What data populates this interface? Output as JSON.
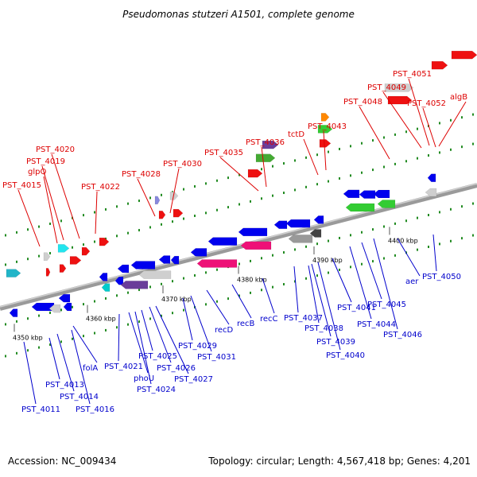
{
  "title": "Pseudomonas stutzeri A1501, complete genome",
  "footer": {
    "accession": "Accession: NC_009434",
    "summary": "Topology: circular; Length: 4,567,418 bp; Genes: 4,201"
  },
  "colors": {
    "forward_label": "#dd0000",
    "reverse_label": "#0000cc",
    "backbone": "#909090",
    "tick": "#228b22"
  },
  "ticks": [
    "4350 kbp",
    "4360 kbp",
    "4370 kbp",
    "4380 kbp",
    "4390 kbp",
    "4400 kbp"
  ],
  "forward_labels": [
    "PST_4015",
    "glpQ",
    "PST_4019",
    "PST_4020",
    "PST_4022",
    "PST_4028",
    "PST_4030",
    "PST_4035",
    "PST_4036",
    "tctD",
    "PST_4043",
    "PST_4048",
    "PST_4049",
    "PST_4051",
    "PST_4052",
    "algB"
  ],
  "reverse_labels": [
    "PST_4011",
    "PST_4013",
    "PST_4014",
    "PST_4016",
    "folA",
    "PST_4021",
    "phoU",
    "PST_4024",
    "PST_4025",
    "PST_4026",
    "PST_4027",
    "PST_4029",
    "PST_4031",
    "recD",
    "recB",
    "recC",
    "PST_4037",
    "PST_4038",
    "PST_4039",
    "PST_4040",
    "PST_4041",
    "PST_4044",
    "PST_4045",
    "PST_4046",
    "aer",
    "PST_4050"
  ]
}
